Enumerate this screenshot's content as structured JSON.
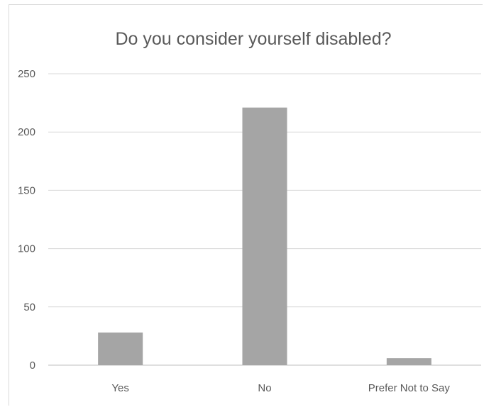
{
  "chart_data": {
    "type": "bar",
    "title": "Do you consider yourself disabled?",
    "categories": [
      "Yes",
      "No",
      "Prefer Not to Say"
    ],
    "values": [
      28,
      221,
      6
    ],
    "xlabel": "",
    "ylabel": "",
    "ylim": [
      0,
      250
    ],
    "yticks": [
      0,
      50,
      100,
      150,
      200,
      250
    ],
    "grid": true,
    "legend": "none",
    "bar_color": "#a5a5a5"
  }
}
